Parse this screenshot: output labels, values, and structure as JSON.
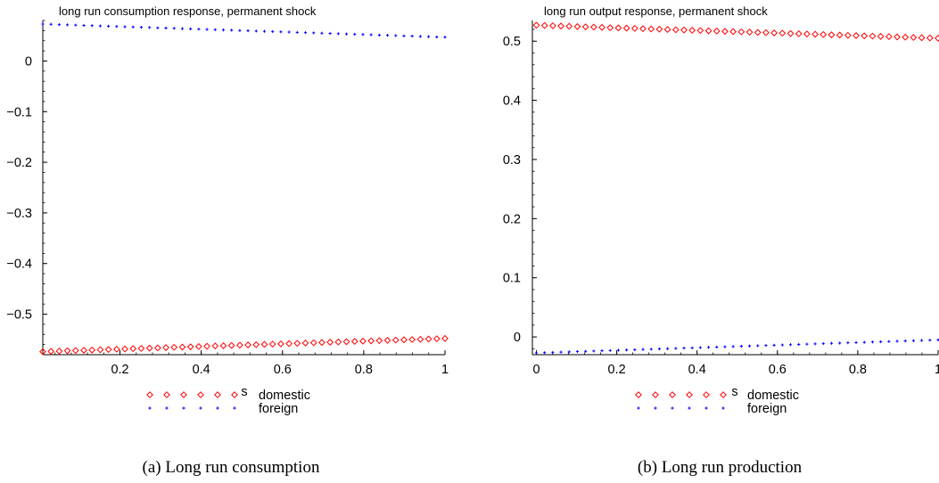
{
  "chart_data": [
    {
      "type": "scatter",
      "title": "long run consumption response, permanent shock",
      "xlabel": "s",
      "ylabel": "",
      "xlim": [
        0.01,
        1.0
      ],
      "ylim": [
        -0.58,
        0.08
      ],
      "xticks": [
        0.2,
        0.4,
        0.6,
        0.8,
        1
      ],
      "xtick_labels": [
        "0.2",
        "0.4",
        "0.6",
        "0.8",
        "1"
      ],
      "yticks": [
        0,
        -0.1,
        -0.2,
        -0.3,
        -0.4,
        -0.5
      ],
      "ytick_labels": [
        "0",
        "−0.1",
        "−0.2",
        "−0.3",
        "−0.4",
        "−0.5"
      ],
      "series": [
        {
          "name": "domestic",
          "color": "#ff0000",
          "marker": "diamond",
          "n_points": 50,
          "x_range": [
            0.01,
            1.0
          ],
          "y_start": -0.574,
          "y_end": -0.548
        },
        {
          "name": "foreign",
          "color": "#0000ff",
          "marker": "cross",
          "n_points": 50,
          "x_range": [
            0.01,
            1.0
          ],
          "y_start": 0.073,
          "y_end": 0.047
        }
      ],
      "legend": {
        "placement": "bottom",
        "entries": [
          "domestic",
          "foreign"
        ]
      },
      "caption": "(a) Long run consumption"
    },
    {
      "type": "scatter",
      "title": "long run output response, permanent shock",
      "xlabel": "s",
      "ylabel": "",
      "xlim": [
        -0.01,
        1.0
      ],
      "ylim": [
        -0.03,
        0.535
      ],
      "xticks": [
        0,
        0.2,
        0.4,
        0.6,
        0.8,
        1
      ],
      "xtick_labels": [
        "0",
        "0.2",
        "0.4",
        "0.6",
        "0.8",
        "1"
      ],
      "yticks": [
        0,
        0.1,
        0.2,
        0.3,
        0.4,
        0.5
      ],
      "ytick_labels": [
        "0",
        "0.1",
        "0.2",
        "0.3",
        "0.4",
        "0.5"
      ],
      "series": [
        {
          "name": "domestic",
          "color": "#ff0000",
          "marker": "diamond",
          "n_points": 50,
          "x_range": [
            0.0,
            1.0
          ],
          "y_start": 0.527,
          "y_end": 0.505
        },
        {
          "name": "foreign",
          "color": "#0000ff",
          "marker": "cross",
          "n_points": 50,
          "x_range": [
            0.0,
            1.0
          ],
          "y_start": -0.027,
          "y_end": -0.005
        }
      ],
      "legend": {
        "placement": "bottom",
        "entries": [
          "domestic",
          "foreign"
        ]
      },
      "caption": "(b) Long run production"
    }
  ]
}
